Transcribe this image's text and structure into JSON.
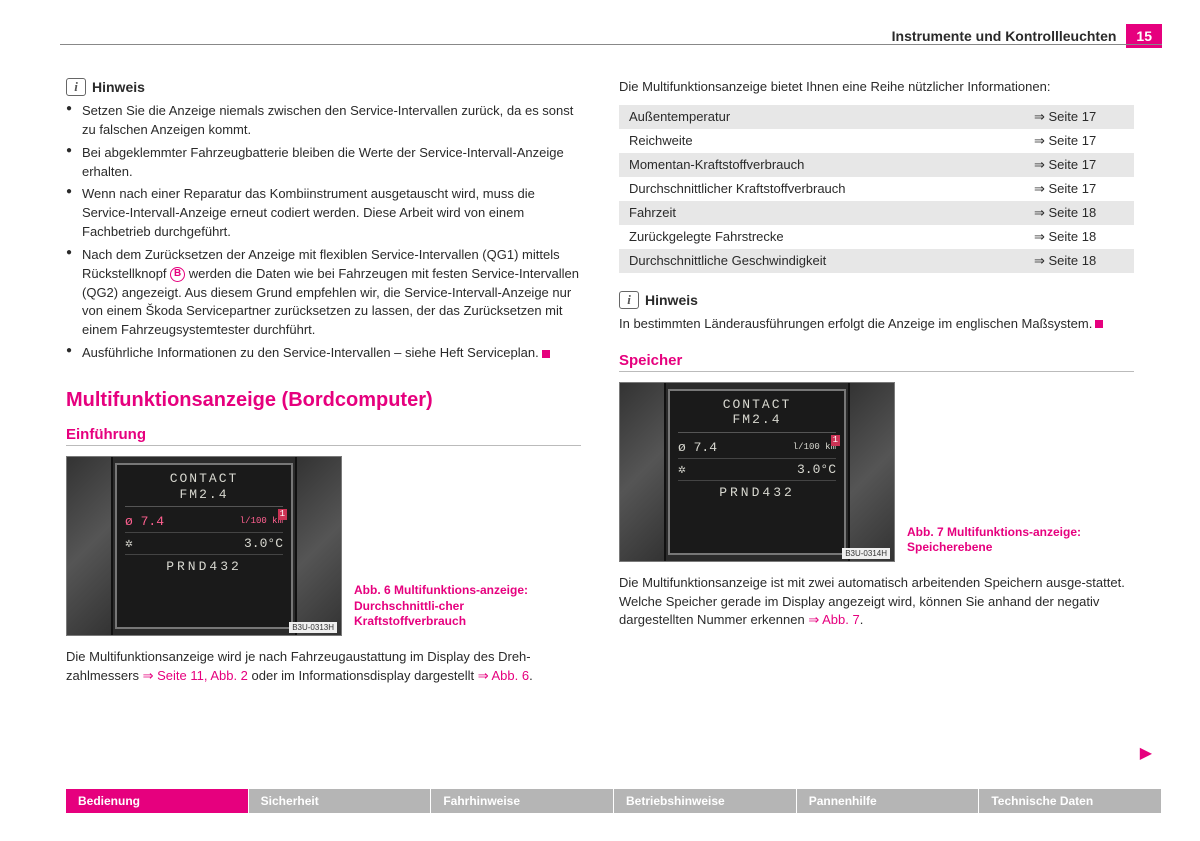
{
  "header": {
    "title": "Instrumente und Kontrollleuchten",
    "page_number": "15"
  },
  "left": {
    "hinweis_label": "Hinweis",
    "bullets": [
      {
        "pre": "Setzen Sie die Anzeige niemals zwischen den Service-Intervallen zurück, da es sonst zu falschen Anzeigen kommt."
      },
      {
        "pre": "Bei abgeklemmter Fahrzeugbatterie bleiben die Werte der Service-Intervall-Anzeige erhalten."
      },
      {
        "pre": "Wenn nach einer Reparatur das Kombiinstrument ausgetauscht wird, muss die Service-Intervall-Anzeige erneut codiert werden. Diese Arbeit wird von einem Fachbetrieb durchgeführt."
      },
      {
        "pre": "Nach dem Zurücksetzen der Anzeige mit flexiblen Service-Intervallen (QG1) mittels Rückstellknopf ",
        "mark": "B",
        "post": " werden die Daten wie bei Fahrzeugen mit festen Service-Intervallen (QG2) angezeigt. Aus diesem Grund empfehlen wir, die Service-Intervall-Anzeige nur von einem Škoda Servicepartner zurücksetzen zu lassen, der das Zurücksetzen mit einem Fahrzeugsystemtester durchführt."
      },
      {
        "pre": "Ausführliche Informationen zu den Service-Intervallen – siehe Heft Serviceplan.",
        "end": true
      }
    ],
    "main_heading": "Multifunktionsanzeige (Bordcomputer)",
    "sub_heading": "Einführung",
    "figure": {
      "contact": "CONTACT",
      "fm": "FM2.4",
      "avg": "ø 7.4",
      "unit": "l/100 km",
      "temp_icon": "✲",
      "temp": "3.0°C",
      "gear": "PRND432",
      "badge": "1",
      "id": "B3U-0313H",
      "caption": "Abb. 6   Multifunktions-anzeige: Durchschnittli-cher Kraftstoffverbrauch"
    },
    "body_text_pre": "Die Multifunktionsanzeige wird je nach Fahrzeugaustattung im Display des Dreh-zahlmessers ",
    "body_ref1": "⇒ Seite 11, Abb. 2",
    "body_text_mid": " oder im Informationsdisplay dargestellt ",
    "body_ref2": "⇒ Abb. 6",
    "body_text_post": "."
  },
  "right": {
    "intro": "Die Multifunktionsanzeige bietet Ihnen eine Reihe nützlicher Informationen:",
    "table": [
      {
        "label": "Außentemperatur",
        "ref": "Seite 17"
      },
      {
        "label": "Reichweite",
        "ref": "Seite 17"
      },
      {
        "label": "Momentan-Kraftstoffverbrauch",
        "ref": "Seite 17"
      },
      {
        "label": "Durchschnittlicher Kraftstoffverbrauch",
        "ref": "Seite 17"
      },
      {
        "label": "Fahrzeit",
        "ref": "Seite 18"
      },
      {
        "label": "Zurückgelegte Fahrstrecke",
        "ref": "Seite 18"
      },
      {
        "label": "Durchschnittliche Geschwindigkeit",
        "ref": "Seite 18"
      }
    ],
    "hinweis_label": "Hinweis",
    "hinweis_text": "In bestimmten Länderausführungen erfolgt die Anzeige im englischen Maßsystem.",
    "sub_heading": "Speicher",
    "figure": {
      "contact": "CONTACT",
      "fm": "FM2.4",
      "avg": "ø 7.4",
      "unit": "l/100 km",
      "temp_icon": "✲",
      "temp": "3.0°C",
      "gear": "PRND432",
      "badge": "1",
      "id": "B3U-0314H",
      "caption": "Abb. 7   Multifunktions-anzeige: Speicherebene"
    },
    "body_text_pre": "Die Multifunktionsanzeige ist mit zwei automatisch arbeitenden Speichern ausge-stattet. Welche Speicher gerade im Display angezeigt wird, können Sie anhand der negativ dargestellten Nummer erkennen ",
    "body_ref": "⇒ Abb. 7",
    "body_text_post": "."
  },
  "nav": {
    "tabs": [
      "Bedienung",
      "Sicherheit",
      "Fahrhinweise",
      "Betriebshinweise",
      "Pannenhilfe",
      "Technische Daten"
    ],
    "active_index": 0
  }
}
